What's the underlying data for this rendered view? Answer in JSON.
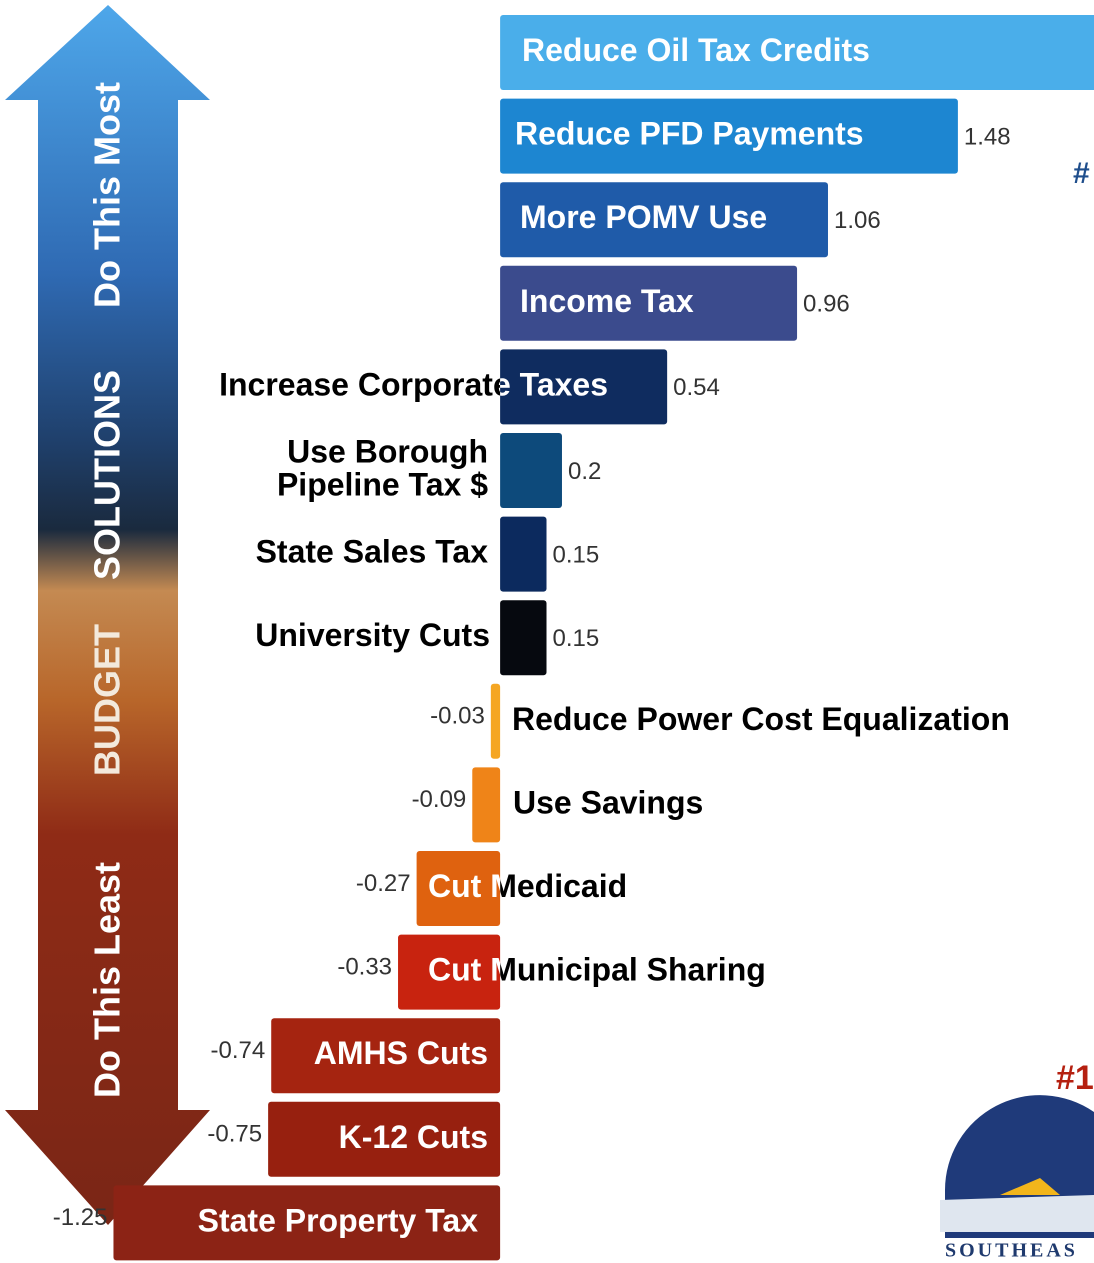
{
  "chart_data": {
    "type": "bar",
    "orientation": "horizontal",
    "categories": [
      "Reduce Oil Tax Credits",
      "Reduce PFD Payments",
      "More POMV Use",
      "Income Tax",
      "Increase Corporate Taxes",
      "Use Borough\nPipeline Tax $",
      "State Sales Tax",
      "University Cuts",
      "Reduce Power Cost Equalization",
      "Use Savings",
      "Cut Medicaid",
      "Cut Municipal Sharing",
      "AMHS Cuts",
      "K-12 Cuts",
      "State Property Tax"
    ],
    "values": [
      2.0,
      1.48,
      1.06,
      0.96,
      0.54,
      0.2,
      0.15,
      0.15,
      -0.03,
      -0.09,
      -0.27,
      -0.33,
      -0.74,
      -0.75,
      -1.25
    ],
    "value_labels_shown": [
      false,
      true,
      true,
      true,
      true,
      true,
      true,
      true,
      true,
      true,
      true,
      true,
      true,
      true,
      true
    ],
    "colors": [
      "#4aaeea",
      "#1d86d1",
      "#1f5ba9",
      "#3b4b8d",
      "#0f2c5f",
      "#0d4a7b",
      "#0c2a5e",
      "#06090f",
      "#f5a623",
      "#ef8418",
      "#df620f",
      "#c8230f",
      "#a52410",
      "#97200f",
      "#8c2315"
    ],
    "xlim": [
      -1.3,
      1.92
    ],
    "arrow_labels": [
      "Do This Most",
      "SOLUTIONS",
      "BUDGET",
      "Do This Least"
    ],
    "annotations": [
      "#",
      "#1",
      "SOUTHEAS"
    ]
  }
}
